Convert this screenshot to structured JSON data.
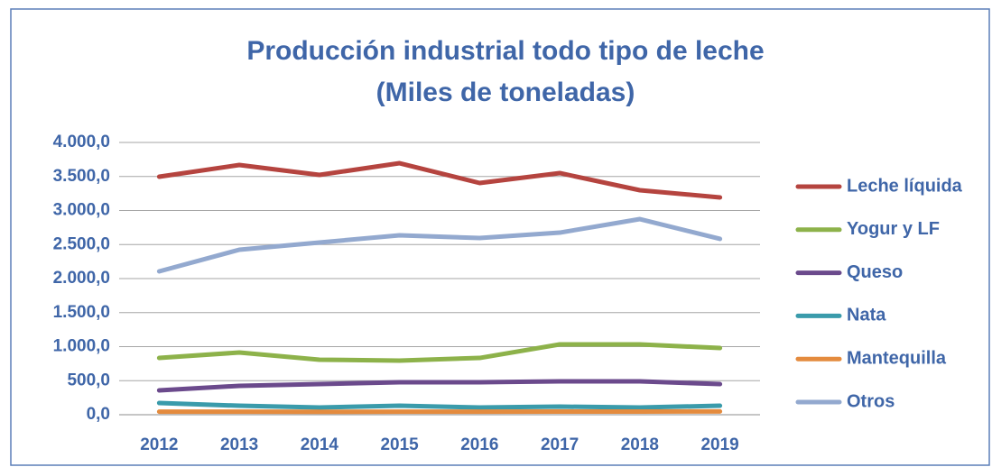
{
  "chart_data": {
    "type": "line",
    "title": "Producción industrial todo tipo de leche",
    "subtitle": "(Miles de toneladas)",
    "categories": [
      "2012",
      "2013",
      "2014",
      "2015",
      "2016",
      "2017",
      "2018",
      "2019"
    ],
    "series": [
      {
        "name": "Leche líquida",
        "color": "#b5443f",
        "values": [
          3497,
          3669,
          3523,
          3695,
          3404,
          3550,
          3298,
          3192
        ]
      },
      {
        "name": "Yogur y LF",
        "color": "#8db24a",
        "values": [
          834,
          914,
          808,
          795,
          834,
          1033,
          1033,
          980
        ]
      },
      {
        "name": "Queso",
        "color": "#6b4a8c",
        "values": [
          358,
          424,
          450,
          477,
          477,
          490,
          490,
          450
        ]
      },
      {
        "name": "Nata",
        "color": "#3a9bab",
        "values": [
          172,
          132,
          106,
          132,
          106,
          119,
          106,
          132
        ]
      },
      {
        "name": "Mantequilla",
        "color": "#e48b3e",
        "values": [
          45,
          44,
          43,
          45,
          44,
          47,
          46,
          48
        ]
      },
      {
        "name": "Otros",
        "color": "#93a9cf",
        "values": [
          2106,
          2424,
          2530,
          2636,
          2596,
          2675,
          2874,
          2583
        ]
      }
    ],
    "ylim": [
      0,
      4000
    ],
    "yticks": [
      {
        "value": 0,
        "label": "0,0"
      },
      {
        "value": 500,
        "label": "500,0"
      },
      {
        "value": 1000,
        "label": "1.000,0"
      },
      {
        "value": 1500,
        "label": "1.500,0"
      },
      {
        "value": 2000,
        "label": "2.000,0"
      },
      {
        "value": 2500,
        "label": "2.500,0"
      },
      {
        "value": 3000,
        "label": "3.000,0"
      },
      {
        "value": 3500,
        "label": "3.500,0"
      },
      {
        "value": 4000,
        "label": "4.000,0"
      }
    ],
    "grid": true,
    "legend": "right"
  }
}
